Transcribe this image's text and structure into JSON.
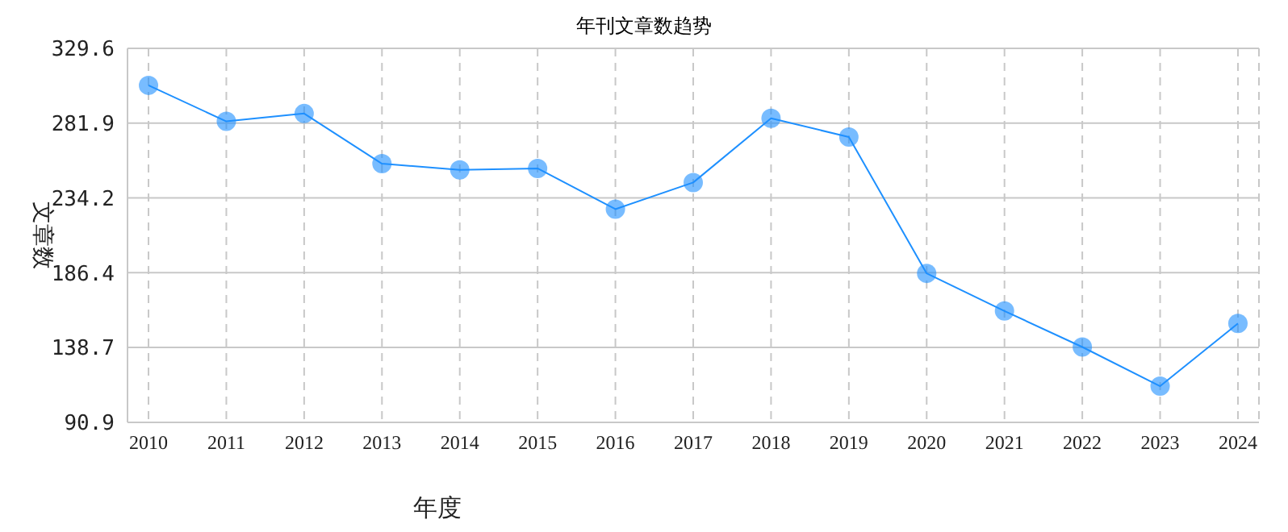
{
  "chart_data": {
    "type": "line",
    "title": "年刊文章数趋势",
    "xlabel": "年度",
    "ylabel": "文章数",
    "categories": [
      "2010",
      "2011",
      "2012",
      "2013",
      "2014",
      "2015",
      "2016",
      "2017",
      "2018",
      "2019",
      "2020",
      "2021",
      "2022",
      "2023",
      "2024"
    ],
    "series": [
      {
        "color": "#1e90ff",
        "values": [
          306,
          283,
          288,
          256,
          252,
          253,
          227,
          244,
          285,
          273,
          186,
          162,
          139,
          114,
          154
        ]
      }
    ],
    "ylim": [
      90.9,
      329.6
    ],
    "yticks": [
      90.9,
      138.7,
      186.4,
      234.2,
      281.9,
      329.6
    ],
    "grid": true,
    "marker": "circle",
    "line_style": "solid",
    "legend": false
  }
}
